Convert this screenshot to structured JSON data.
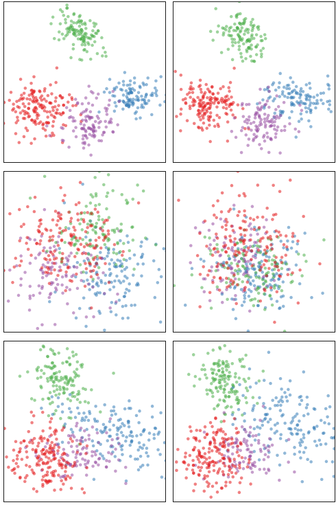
{
  "chart_data": [
    {
      "type": "scatter",
      "title": "",
      "xlabel": "",
      "ylabel": "",
      "xlim": [
        0,
        10
      ],
      "ylim": [
        0,
        10
      ],
      "grid": false,
      "legend": "none",
      "ticks": false,
      "series": [
        {
          "color": "#e41a1c",
          "n": 160,
          "center": [
            2.1,
            3.4
          ],
          "spread": [
            1.0,
            0.85
          ],
          "tilt": 0.0
        },
        {
          "color": "#4daf4a",
          "n": 120,
          "center": [
            4.6,
            8.1
          ],
          "spread": [
            0.75,
            0.6
          ],
          "tilt": -0.4
        },
        {
          "color": "#377eb8",
          "n": 110,
          "center": [
            8.1,
            4.2
          ],
          "spread": [
            0.85,
            0.6
          ],
          "tilt": 0.0
        },
        {
          "color": "#984ea3",
          "n": 110,
          "center": [
            5.1,
            2.3
          ],
          "spread": [
            0.8,
            0.95
          ],
          "tilt": 0.0
        }
      ]
    },
    {
      "type": "scatter",
      "title": "",
      "xlabel": "",
      "ylabel": "",
      "xlim": [
        0,
        10
      ],
      "ylim": [
        0,
        10
      ],
      "grid": false,
      "legend": "none",
      "ticks": false,
      "series": [
        {
          "color": "#e41a1c",
          "n": 160,
          "center": [
            2.2,
            3.4
          ],
          "spread": [
            0.9,
            0.85
          ],
          "tilt": 0.0
        },
        {
          "color": "#4daf4a",
          "n": 120,
          "center": [
            4.3,
            7.9
          ],
          "spread": [
            0.7,
            0.75
          ],
          "tilt": -0.5
        },
        {
          "color": "#377eb8",
          "n": 120,
          "center": [
            7.6,
            4.0
          ],
          "spread": [
            1.2,
            0.75
          ],
          "tilt": 0.0
        },
        {
          "color": "#984ea3",
          "n": 110,
          "center": [
            5.6,
            2.5
          ],
          "spread": [
            0.8,
            0.9
          ],
          "tilt": 0.0
        }
      ]
    },
    {
      "type": "scatter",
      "title": "",
      "xlabel": "",
      "ylabel": "",
      "xlim": [
        0,
        10
      ],
      "ylim": [
        0,
        10
      ],
      "grid": false,
      "legend": "none",
      "ticks": false,
      "series": [
        {
          "color": "#377eb8",
          "n": 140,
          "center": [
            6.8,
            3.6
          ],
          "spread": [
            1.6,
            1.6
          ],
          "tilt": 0.0
        },
        {
          "color": "#984ea3",
          "n": 110,
          "center": [
            3.2,
            3.7
          ],
          "spread": [
            1.6,
            1.3
          ],
          "tilt": 0.0
        },
        {
          "color": "#4daf4a",
          "n": 120,
          "center": [
            5.9,
            6.4
          ],
          "spread": [
            1.4,
            1.4
          ],
          "tilt": 0.0
        },
        {
          "color": "#e41a1c",
          "n": 170,
          "center": [
            3.9,
            5.6
          ],
          "spread": [
            1.8,
            1.5
          ],
          "tilt": 0.0
        }
      ]
    },
    {
      "type": "scatter",
      "title": "",
      "xlabel": "",
      "ylabel": "",
      "xlim": [
        0,
        10
      ],
      "ylim": [
        0,
        10
      ],
      "grid": false,
      "legend": "none",
      "ticks": false,
      "series": [
        {
          "color": "#984ea3",
          "n": 110,
          "center": [
            3.9,
            4.8
          ],
          "spread": [
            1.3,
            1.4
          ],
          "tilt": 0.0
        },
        {
          "color": "#377eb8",
          "n": 140,
          "center": [
            5.4,
            3.8
          ],
          "spread": [
            1.5,
            1.4
          ],
          "tilt": 0.0
        },
        {
          "color": "#4daf4a",
          "n": 120,
          "center": [
            4.9,
            3.9
          ],
          "spread": [
            1.5,
            1.3
          ],
          "tilt": 0.0
        },
        {
          "color": "#e41a1c",
          "n": 170,
          "center": [
            4.5,
            5.2
          ],
          "spread": [
            1.5,
            1.9
          ],
          "tilt": 0.0
        }
      ]
    },
    {
      "type": "scatter",
      "title": "",
      "xlabel": "",
      "ylabel": "",
      "xlim": [
        0,
        10
      ],
      "ylim": [
        0,
        10
      ],
      "grid": false,
      "legend": "none",
      "ticks": false,
      "series": [
        {
          "color": "#4daf4a",
          "n": 140,
          "center": [
            3.4,
            7.6
          ],
          "spread": [
            0.95,
            1.1
          ],
          "tilt": -0.3
        },
        {
          "color": "#377eb8",
          "n": 150,
          "center": [
            6.9,
            4.3
          ],
          "spread": [
            1.6,
            1.0
          ],
          "tilt": -0.3
        },
        {
          "color": "#984ea3",
          "n": 100,
          "center": [
            4.8,
            2.9
          ],
          "spread": [
            1.3,
            0.8
          ],
          "tilt": 0.0
        },
        {
          "color": "#e41a1c",
          "n": 180,
          "center": [
            2.4,
            2.7
          ],
          "spread": [
            1.1,
            1.0
          ],
          "tilt": 0.0
        }
      ]
    },
    {
      "type": "scatter",
      "title": "",
      "xlabel": "",
      "ylabel": "",
      "xlim": [
        0,
        10
      ],
      "ylim": [
        0,
        10
      ],
      "grid": false,
      "legend": "none",
      "ticks": false,
      "series": [
        {
          "color": "#4daf4a",
          "n": 140,
          "center": [
            3.1,
            7.4
          ],
          "spread": [
            0.85,
            1.1
          ],
          "tilt": -0.3
        },
        {
          "color": "#377eb8",
          "n": 160,
          "center": [
            7.0,
            5.1
          ],
          "spread": [
            1.8,
            1.3
          ],
          "tilt": -0.2
        },
        {
          "color": "#984ea3",
          "n": 100,
          "center": [
            4.5,
            3.1
          ],
          "spread": [
            1.2,
            0.9
          ],
          "tilt": 0.0
        },
        {
          "color": "#e41a1c",
          "n": 180,
          "center": [
            2.6,
            2.8
          ],
          "spread": [
            1.1,
            1.0
          ],
          "tilt": 0.0
        }
      ]
    }
  ]
}
